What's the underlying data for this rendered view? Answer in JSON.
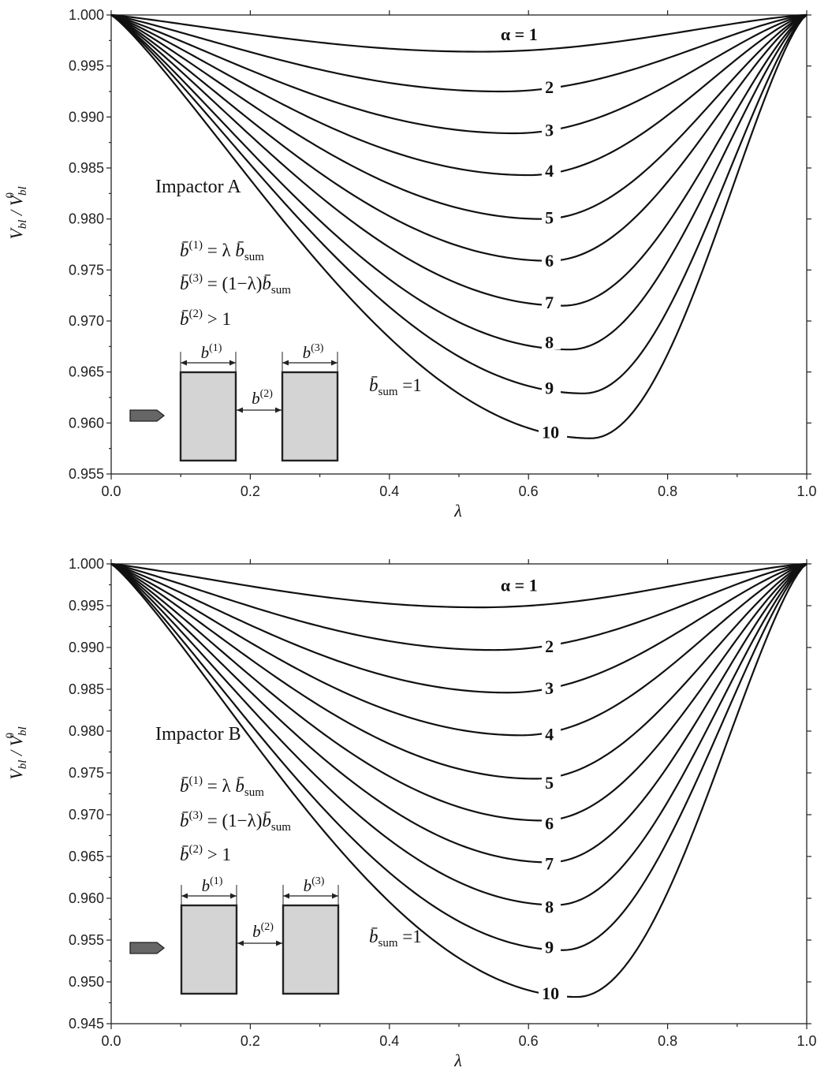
{
  "chart_data": [
    {
      "type": "line",
      "xlabel": "λ",
      "ylabel": "V_bl / V_bl^0",
      "xlim": [
        0,
        1
      ],
      "ylim": [
        0.955,
        1.0
      ],
      "xticks": [
        "0.0",
        "0.2",
        "0.4",
        "0.6",
        "0.8",
        "1.0"
      ],
      "yticks": [
        "0.955",
        "0.960",
        "0.965",
        "0.970",
        "0.975",
        "0.980",
        "0.985",
        "0.990",
        "0.995",
        "1.000"
      ],
      "annotations": {
        "impactor": "Impactor A",
        "b_sum": "b̄sum = 1",
        "b1_formula": "b̄(1) = λ b̄sum",
        "b3_formula": "b̄(3) = (1−λ) b̄sum",
        "b2_formula": "b̄(2) > 1",
        "b1": "b(1)",
        "b2": "b(2)",
        "b3": "b(3)"
      },
      "series": [
        {
          "alpha": 1,
          "label": "α = 1",
          "min_x": 0.53,
          "min_y": 0.9964,
          "label_y": 0.998
        },
        {
          "alpha": 2,
          "label": "2",
          "min_x": 0.56,
          "min_y": 0.9925,
          "label_y": 0.9928
        },
        {
          "alpha": 3,
          "label": "3",
          "min_x": 0.58,
          "min_y": 0.9884,
          "label_y": 0.9886
        },
        {
          "alpha": 4,
          "label": "4",
          "min_x": 0.6,
          "min_y": 0.9843,
          "label_y": 0.9846
        },
        {
          "alpha": 5,
          "label": "5",
          "min_x": 0.62,
          "min_y": 0.98,
          "label_y": 0.98
        },
        {
          "alpha": 6,
          "label": "6",
          "min_x": 0.63,
          "min_y": 0.9759,
          "label_y": 0.9758
        },
        {
          "alpha": 7,
          "label": "7",
          "min_x": 0.65,
          "min_y": 0.9715,
          "label_y": 0.9717
        },
        {
          "alpha": 8,
          "label": "8",
          "min_x": 0.66,
          "min_y": 0.9672,
          "label_y": 0.9678
        },
        {
          "alpha": 9,
          "label": "9",
          "min_x": 0.68,
          "min_y": 0.9629,
          "label_y": 0.9633
        },
        {
          "alpha": 10,
          "label": "10",
          "min_x": 0.69,
          "min_y": 0.9585,
          "label_y": 0.959
        }
      ]
    },
    {
      "type": "line",
      "xlabel": "λ",
      "ylabel": "V_bl / V_bl^0",
      "xlim": [
        0,
        1
      ],
      "ylim": [
        0.945,
        1.0
      ],
      "xticks": [
        "0.0",
        "0.2",
        "0.4",
        "0.6",
        "0.8",
        "1.0"
      ],
      "yticks": [
        "0.945",
        "0.950",
        "0.955",
        "0.960",
        "0.965",
        "0.970",
        "0.975",
        "0.980",
        "0.985",
        "0.990",
        "0.995",
        "1.000"
      ],
      "annotations": {
        "impactor": "Impactor B",
        "b_sum": "b̄sum = 1",
        "b1_formula": "b̄(1) = λ b̄sum",
        "b3_formula": "b̄(3) = (1−λ) b̄sum",
        "b2_formula": "b̄(2) > 1",
        "b1": "b(1)",
        "b2": "b(2)",
        "b3": "b(3)"
      },
      "series": [
        {
          "alpha": 1,
          "label": "α = 1",
          "min_x": 0.53,
          "min_y": 0.9948,
          "label_y": 0.9973
        },
        {
          "alpha": 2,
          "label": "2",
          "min_x": 0.55,
          "min_y": 0.9897,
          "label_y": 0.99
        },
        {
          "alpha": 3,
          "label": "3",
          "min_x": 0.57,
          "min_y": 0.9846,
          "label_y": 0.985
        },
        {
          "alpha": 4,
          "label": "4",
          "min_x": 0.59,
          "min_y": 0.9795,
          "label_y": 0.9795
        },
        {
          "alpha": 5,
          "label": "5",
          "min_x": 0.61,
          "min_y": 0.9743,
          "label_y": 0.9737
        },
        {
          "alpha": 6,
          "label": "6",
          "min_x": 0.62,
          "min_y": 0.9693,
          "label_y": 0.9688
        },
        {
          "alpha": 7,
          "label": "7",
          "min_x": 0.63,
          "min_y": 0.9643,
          "label_y": 0.964
        },
        {
          "alpha": 8,
          "label": "8",
          "min_x": 0.64,
          "min_y": 0.9592,
          "label_y": 0.9588
        },
        {
          "alpha": 9,
          "label": "9",
          "min_x": 0.65,
          "min_y": 0.9538,
          "label_y": 0.954
        },
        {
          "alpha": 10,
          "label": "10",
          "min_x": 0.67,
          "min_y": 0.9482,
          "label_y": 0.9485
        }
      ]
    }
  ]
}
